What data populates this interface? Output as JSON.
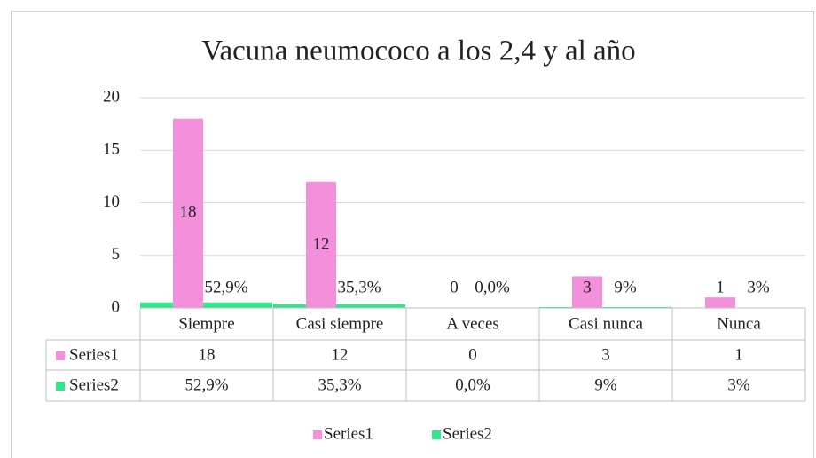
{
  "chart_data": {
    "type": "bar",
    "title": "Vacuna neumococo a los 2,4 y al año",
    "categories": [
      "Siempre",
      "Casi siempre",
      "A veces",
      "Casi nunca",
      "Nunca"
    ],
    "series": [
      {
        "name": "Series1",
        "color": "#f48fdc",
        "values": [
          18,
          12,
          0,
          3,
          1
        ]
      },
      {
        "name": "Series2",
        "color": "#33e68a",
        "values": [
          0.529,
          0.353,
          0,
          0.09,
          0.03
        ],
        "value_labels": [
          "52,9%",
          "35,3%",
          "0,0%",
          "9%",
          "3%"
        ]
      }
    ],
    "ylim": [
      0,
      20
    ],
    "yticks": [
      0,
      5,
      10,
      15,
      20
    ],
    "grid": true,
    "legend": "bottom"
  }
}
